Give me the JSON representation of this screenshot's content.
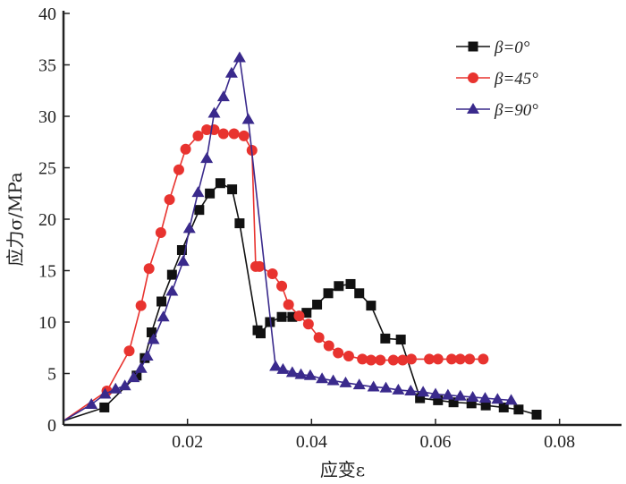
{
  "chart_data": {
    "type": "line",
    "title": "",
    "xlabel": "应变ε",
    "ylabel": "应力σ/MPa",
    "xlim": [
      0,
      0.09
    ],
    "ylim": [
      0,
      40
    ],
    "xticks": [
      0.02,
      0.04,
      0.06,
      0.08
    ],
    "xtick_labels": [
      "0.02",
      "0.04",
      "0.06",
      "0.08"
    ],
    "yticks": [
      0,
      5,
      10,
      15,
      20,
      25,
      30,
      35,
      40
    ],
    "ytick_labels": [
      "0",
      "5",
      "10",
      "15",
      "20",
      "25",
      "30",
      "35",
      "40"
    ],
    "grid": false,
    "legend_position": "top-right",
    "series": [
      {
        "name": "β=0°",
        "color": "#111111",
        "marker": "square",
        "x": [
          0,
          0.0066,
          0.0118,
          0.0131,
          0.0142,
          0.0158,
          0.0175,
          0.0191,
          0.0219,
          0.0236,
          0.0253,
          0.0272,
          0.0284,
          0.0313,
          0.0318,
          0.0333,
          0.0352,
          0.0369,
          0.0392,
          0.0409,
          0.0427,
          0.0444,
          0.0463,
          0.0477,
          0.0496,
          0.0519,
          0.0544,
          0.0575,
          0.0604,
          0.0629,
          0.0658,
          0.0681,
          0.071,
          0.0734,
          0.0763
        ],
        "y": [
          0.4,
          1.7,
          4.8,
          6.5,
          9.0,
          12.0,
          14.6,
          17.0,
          20.9,
          22.5,
          23.5,
          22.9,
          19.6,
          9.2,
          8.9,
          10.0,
          10.5,
          10.5,
          10.9,
          11.7,
          12.8,
          13.5,
          13.7,
          12.8,
          11.6,
          8.4,
          8.3,
          2.6,
          2.4,
          2.2,
          2.1,
          1.9,
          1.7,
          1.5,
          1.0
        ]
      },
      {
        "name": "β=45°",
        "color": "#e8332f",
        "marker": "circle",
        "x": [
          0,
          0.007,
          0.0106,
          0.0125,
          0.0138,
          0.0157,
          0.0171,
          0.0186,
          0.0197,
          0.0217,
          0.0231,
          0.0243,
          0.0258,
          0.0275,
          0.0291,
          0.0304,
          0.031,
          0.0316,
          0.0337,
          0.0352,
          0.0363,
          0.038,
          0.0395,
          0.0412,
          0.0428,
          0.0443,
          0.046,
          0.0482,
          0.0496,
          0.0511,
          0.0532,
          0.0547,
          0.0561,
          0.059,
          0.0604,
          0.0626,
          0.064,
          0.0655,
          0.0677
        ],
        "y": [
          0.4,
          3.3,
          7.2,
          11.6,
          15.2,
          18.7,
          21.9,
          24.8,
          26.8,
          28.1,
          28.7,
          28.7,
          28.3,
          28.3,
          28.1,
          26.7,
          15.4,
          15.4,
          14.7,
          13.5,
          11.7,
          10.6,
          9.8,
          8.5,
          7.7,
          7.0,
          6.7,
          6.4,
          6.3,
          6.3,
          6.3,
          6.3,
          6.4,
          6.4,
          6.4,
          6.4,
          6.4,
          6.4,
          6.4
        ]
      },
      {
        "name": "β=90°",
        "color": "#3a2a8c",
        "marker": "triangle",
        "x": [
          0,
          0.0045,
          0.0067,
          0.0084,
          0.0099,
          0.0113,
          0.0125,
          0.0135,
          0.0145,
          0.0161,
          0.0175,
          0.0193,
          0.0203,
          0.0217,
          0.0231,
          0.0243,
          0.0258,
          0.0271,
          0.0284,
          0.0298,
          0.0342,
          0.0354,
          0.0369,
          0.0383,
          0.0398,
          0.0417,
          0.0435,
          0.0455,
          0.0477,
          0.05,
          0.052,
          0.054,
          0.056,
          0.058,
          0.06,
          0.062,
          0.064,
          0.066,
          0.068,
          0.07,
          0.0722
        ],
        "y": [
          0.4,
          2.0,
          3.0,
          3.5,
          3.8,
          4.6,
          5.5,
          6.7,
          8.3,
          10.5,
          13.0,
          15.9,
          19.1,
          22.6,
          25.9,
          30.3,
          31.9,
          34.2,
          35.7,
          29.7,
          5.7,
          5.4,
          5.1,
          4.9,
          4.8,
          4.5,
          4.3,
          4.1,
          3.9,
          3.7,
          3.6,
          3.4,
          3.3,
          3.2,
          3.0,
          2.9,
          2.8,
          2.7,
          2.6,
          2.5,
          2.4
        ]
      }
    ]
  }
}
